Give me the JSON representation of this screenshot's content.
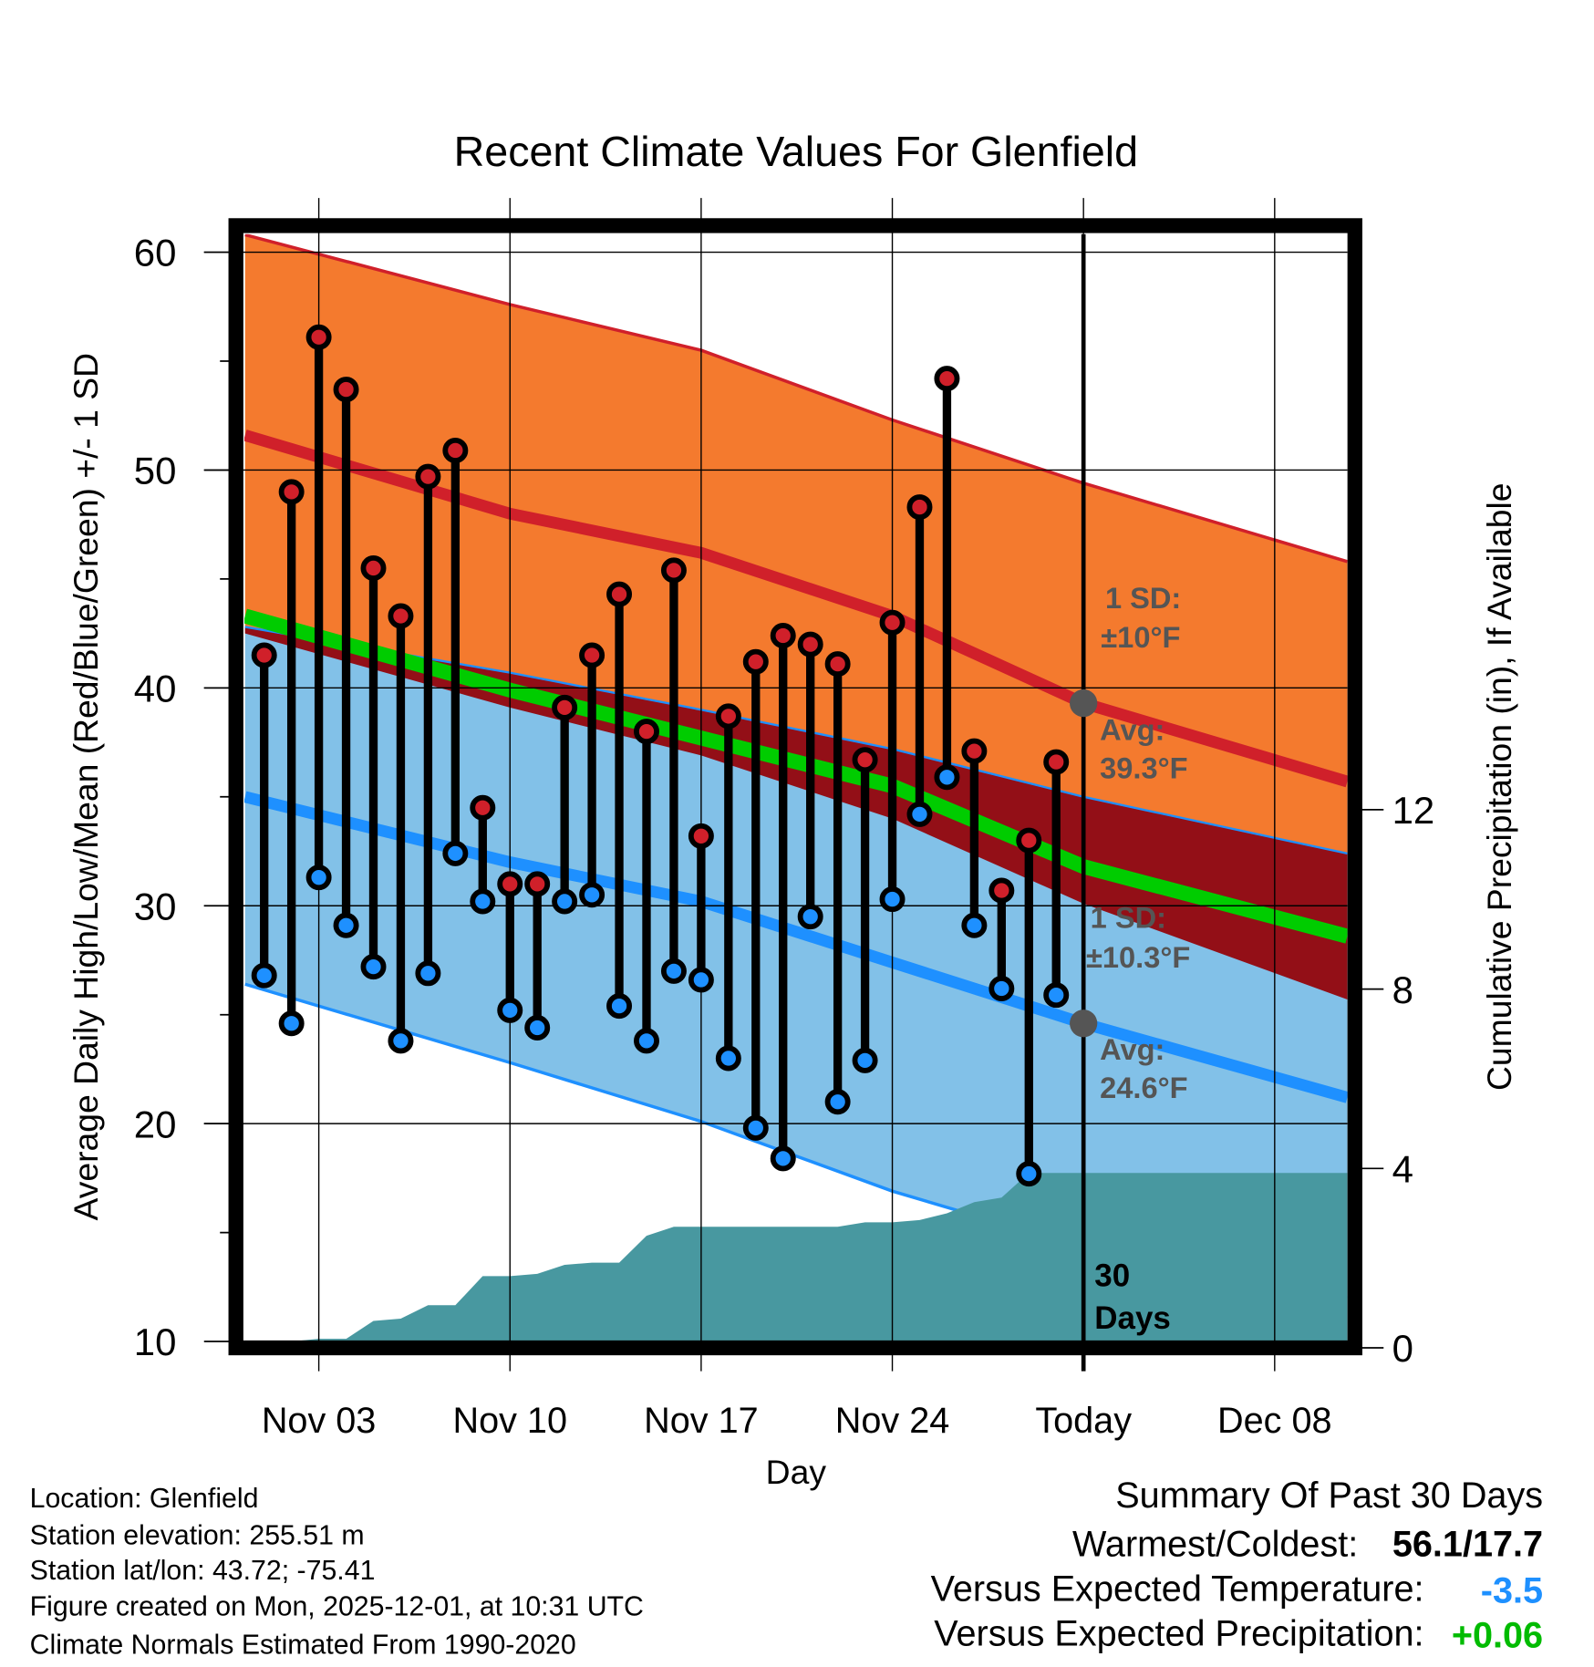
{
  "chart_data": {
    "type": "line",
    "title": "Recent Climate Values For Glenfield",
    "xlabel": "Day",
    "ylabel": "Average Daily High/Low/Mean (Red/Blue/Green) +/- 1 SD",
    "y2label": "Cumulative Precipitation (in), If Available",
    "ylim": [
      10,
      60
    ],
    "y2lim": [
      0,
      15.1
    ],
    "yticks": [
      "10",
      "20",
      "30",
      "40",
      "50",
      "60"
    ],
    "y2ticks": [
      "0",
      "4",
      "8",
      "12"
    ],
    "xticks": [
      {
        "day": 3,
        "label": "Nov 03"
      },
      {
        "day": 10,
        "label": "Nov 10"
      },
      {
        "day": 17,
        "label": "Nov 17"
      },
      {
        "day": 24,
        "label": "Nov 24"
      },
      {
        "day": 31,
        "label": "Today"
      },
      {
        "day": 38,
        "label": "Dec 08"
      }
    ],
    "day_index_note": "day 1 = Nov 01",
    "observed": {
      "days": [
        1,
        2,
        3,
        4,
        5,
        6,
        7,
        8,
        9,
        10,
        11,
        12,
        13,
        14,
        15,
        16,
        17,
        18,
        19,
        20,
        21,
        22,
        23,
        24,
        25,
        26,
        27,
        28,
        29,
        30
      ],
      "high": [
        41.5,
        49.0,
        56.1,
        53.7,
        45.5,
        43.3,
        49.7,
        50.9,
        34.5,
        31.0,
        31.0,
        39.1,
        41.5,
        44.3,
        38.0,
        45.4,
        33.2,
        38.7,
        41.2,
        42.4,
        42.0,
        41.1,
        36.7,
        43.0,
        48.3,
        54.2,
        37.1,
        30.7,
        33.0,
        36.6
      ],
      "low": [
        26.8,
        24.6,
        31.3,
        29.1,
        27.2,
        23.8,
        26.9,
        32.4,
        30.2,
        25.2,
        24.4,
        30.2,
        30.5,
        25.4,
        23.8,
        27.0,
        26.6,
        23.0,
        19.8,
        18.4,
        29.5,
        21.0,
        22.9,
        30.3,
        34.2,
        35.9,
        29.1,
        26.2,
        17.7,
        25.9
      ]
    },
    "normals": {
      "days": [
        0.3,
        10,
        17,
        24,
        31,
        40.66
      ],
      "high_upper": [
        60.8,
        57.6,
        55.5,
        52.3,
        49.4,
        45.8
      ],
      "high_avg": [
        51.6,
        48.0,
        46.2,
        43.3,
        39.3,
        35.7
      ],
      "high_lower": [
        42.5,
        39.1,
        36.9,
        34.0,
        30.1,
        25.7
      ],
      "mean": [
        43.3,
        39.9,
        37.7,
        35.5,
        31.8,
        28.6
      ],
      "low_upper": [
        42.8,
        40.7,
        39.0,
        37.2,
        35.0,
        32.4
      ],
      "low_avg": [
        35.0,
        32.0,
        30.2,
        27.4,
        24.6,
        21.2
      ],
      "low_lower": [
        26.4,
        22.8,
        20.1,
        16.9,
        14.3,
        12.0
      ]
    },
    "precip": {
      "days": [
        0.3,
        2,
        3,
        4,
        5,
        6,
        7,
        8,
        9,
        10,
        11,
        12,
        13,
        14,
        15,
        16,
        22,
        23,
        24,
        25,
        26,
        27,
        28,
        29,
        30,
        40.66
      ],
      "cumulative_in": [
        0,
        0,
        0.2,
        0.2,
        0.6,
        0.65,
        0.95,
        0.95,
        1.6,
        1.6,
        1.65,
        1.85,
        1.9,
        1.9,
        2.5,
        2.7,
        2.7,
        2.8,
        2.8,
        2.85,
        3.0,
        3.25,
        3.35,
        3.9,
        3.9,
        3.9
      ]
    },
    "annotations": {
      "high_sd_label": "1 SD:",
      "high_sd_value": "±10°F",
      "high_avg_label": "Avg:",
      "high_avg_value": "39.3°F",
      "low_sd_label": "1 SD:",
      "low_sd_value": "±10.3°F",
      "low_avg_label": "Avg:",
      "low_avg_value": "24.6°F",
      "window_num": "30",
      "window_unit": "Days"
    },
    "colors": {
      "high_band": "#f47a2e",
      "high_line": "#d0202a",
      "overlap": "#930f17",
      "mean": "#00cc00",
      "low_band": "#82c1e8",
      "low_line": "#1e90ff",
      "precip": "#4898a0",
      "marker_high": "#d0202a",
      "marker_low": "#1e90ff"
    }
  },
  "footer": {
    "location": "Location: Glenfield",
    "elevation": "Station elevation: 255.51 m",
    "latlon": "Station lat/lon: 43.72; -75.41",
    "created": "Figure created on Mon, 2025-12-01, at 10:31 UTC",
    "normals": "Climate Normals Estimated From 1990-2020"
  },
  "summary": {
    "title": "Summary Of Past 30 Days",
    "warm_cold_label": "Warmest/Coldest:",
    "warm_cold_value": "56.1/17.7",
    "temp_label": "Versus Expected Temperature:",
    "temp_value": "-3.5",
    "temp_color": "#1e90ff",
    "precip_label": "Versus Expected Precipitation:",
    "precip_value": "+0.06",
    "precip_color": "#00bb00"
  }
}
